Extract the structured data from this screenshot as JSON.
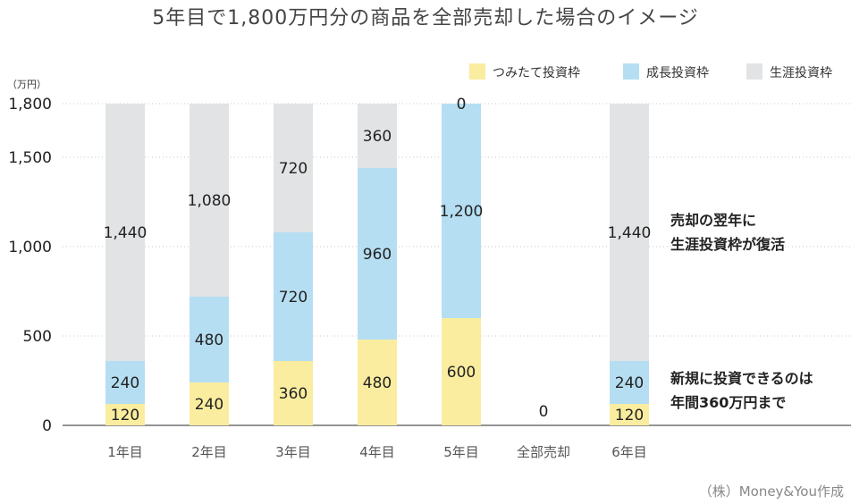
{
  "title": "5年目で1,800万円分の商品を全部売却した場合のイメージ",
  "unit_label": "（万円）",
  "credit": "（株）Money&You作成",
  "notes": [
    [
      "売却の翌年に",
      "生涯投資枠が復活"
    ],
    [
      "新規に投資できるのは",
      "年間360万円まで"
    ]
  ],
  "colors": {
    "tsumitate": "#fbed9f",
    "seicho": "#b5def2",
    "shogai": "#e1e3e5",
    "grid": "#c8c8c8",
    "axis": "#555555"
  },
  "chart_data": {
    "type": "bar",
    "stacked": true,
    "categories": [
      "1年目",
      "2年目",
      "3年目",
      "4年目",
      "5年目",
      "全部売却",
      "6年目"
    ],
    "ylim": [
      0,
      1800
    ],
    "yticks": [
      0,
      500,
      1000,
      1500,
      1800
    ],
    "ytick_labels": [
      "0",
      "500",
      "1,000",
      "1,500",
      "1,800"
    ],
    "grid": true,
    "legend_position": "top-right",
    "series": [
      {
        "name": "つみたて投資枠",
        "key": "tsumitate",
        "values": [
          120,
          240,
          360,
          480,
          600,
          0,
          120
        ],
        "labels": [
          "120",
          "240",
          "360",
          "480",
          "600",
          "",
          "120"
        ]
      },
      {
        "name": "成長投資枠",
        "key": "seicho",
        "values": [
          240,
          480,
          720,
          960,
          1200,
          0,
          240
        ],
        "labels": [
          "240",
          "480",
          "720",
          "960",
          "1,200",
          "",
          "240"
        ]
      },
      {
        "name": "生涯投資枠",
        "key": "shogai",
        "values": [
          1440,
          1080,
          720,
          360,
          0,
          0,
          1440
        ],
        "labels": [
          "1,440",
          "1,080",
          "720",
          "360",
          "0",
          "",
          "1,440"
        ]
      }
    ],
    "total_labels": [
      "",
      "",
      "",
      "",
      "",
      "0",
      ""
    ]
  }
}
